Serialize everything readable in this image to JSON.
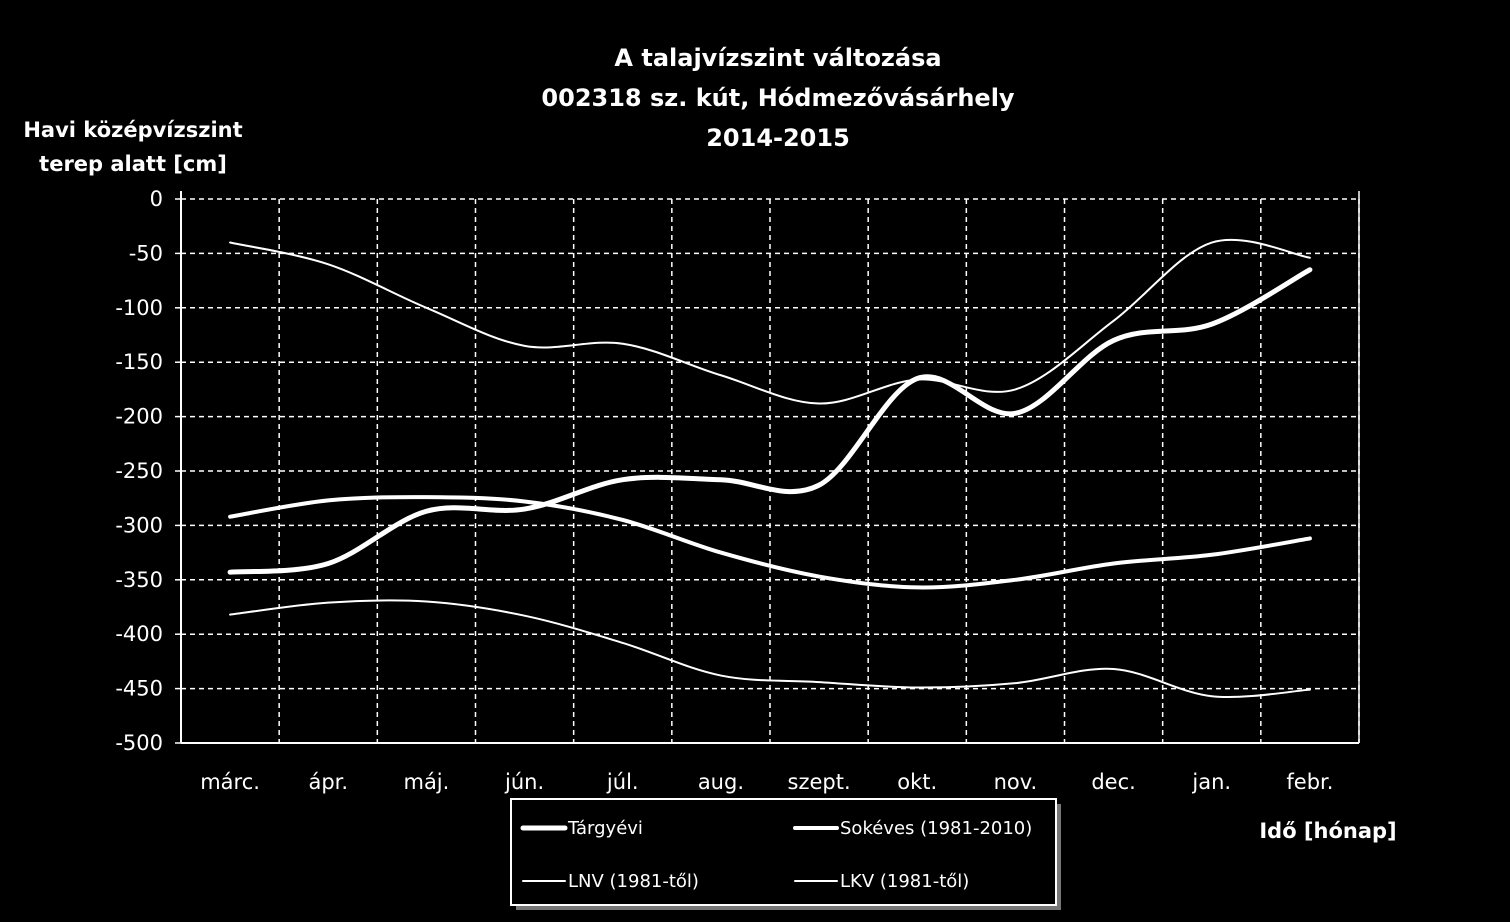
{
  "chart_data": {
    "type": "line",
    "title_lines": [
      "A talajvízszint változása",
      "002318 sz. kút, Hódmezővásárhely",
      "2014-2015"
    ],
    "ylabel_lines": [
      "Havi középvízszint",
      "terep alatt [cm]"
    ],
    "xlabel": "Idő [hónap]",
    "categories": [
      "márc.",
      "ápr.",
      "máj.",
      "jún.",
      "júl.",
      "aug.",
      "szept.",
      "okt.",
      "nov.",
      "dec.",
      "jan.",
      "febr."
    ],
    "ylim": [
      -500,
      0
    ],
    "yticks": [
      0,
      -50,
      -100,
      -150,
      -200,
      -250,
      -300,
      -350,
      -400,
      -450,
      -500
    ],
    "grid": true,
    "legend_position": "bottom-center",
    "series": [
      {
        "name": "Tárgyévi",
        "values": [
          -343,
          -335,
          -287,
          -285,
          -258,
          -258,
          -263,
          -165,
          -197,
          -130,
          -115,
          -65
        ],
        "width": 5
      },
      {
        "name": "Sokéves (1981-2010)",
        "values": [
          -292,
          -277,
          -274,
          -278,
          -295,
          -325,
          -347,
          -357,
          -350,
          -335,
          -327,
          -312
        ],
        "width": 4
      },
      {
        "name": "LNV (1981-től)",
        "values": [
          -40,
          -60,
          -100,
          -135,
          -133,
          -162,
          -188,
          -166,
          -175,
          -112,
          -40,
          -54
        ],
        "width": 2
      },
      {
        "name": "LKV (1981-től)",
        "values": [
          -382,
          -371,
          -370,
          -383,
          -408,
          -438,
          -444,
          -449,
          -445,
          -432,
          -457,
          -451
        ],
        "width": 2
      }
    ]
  }
}
